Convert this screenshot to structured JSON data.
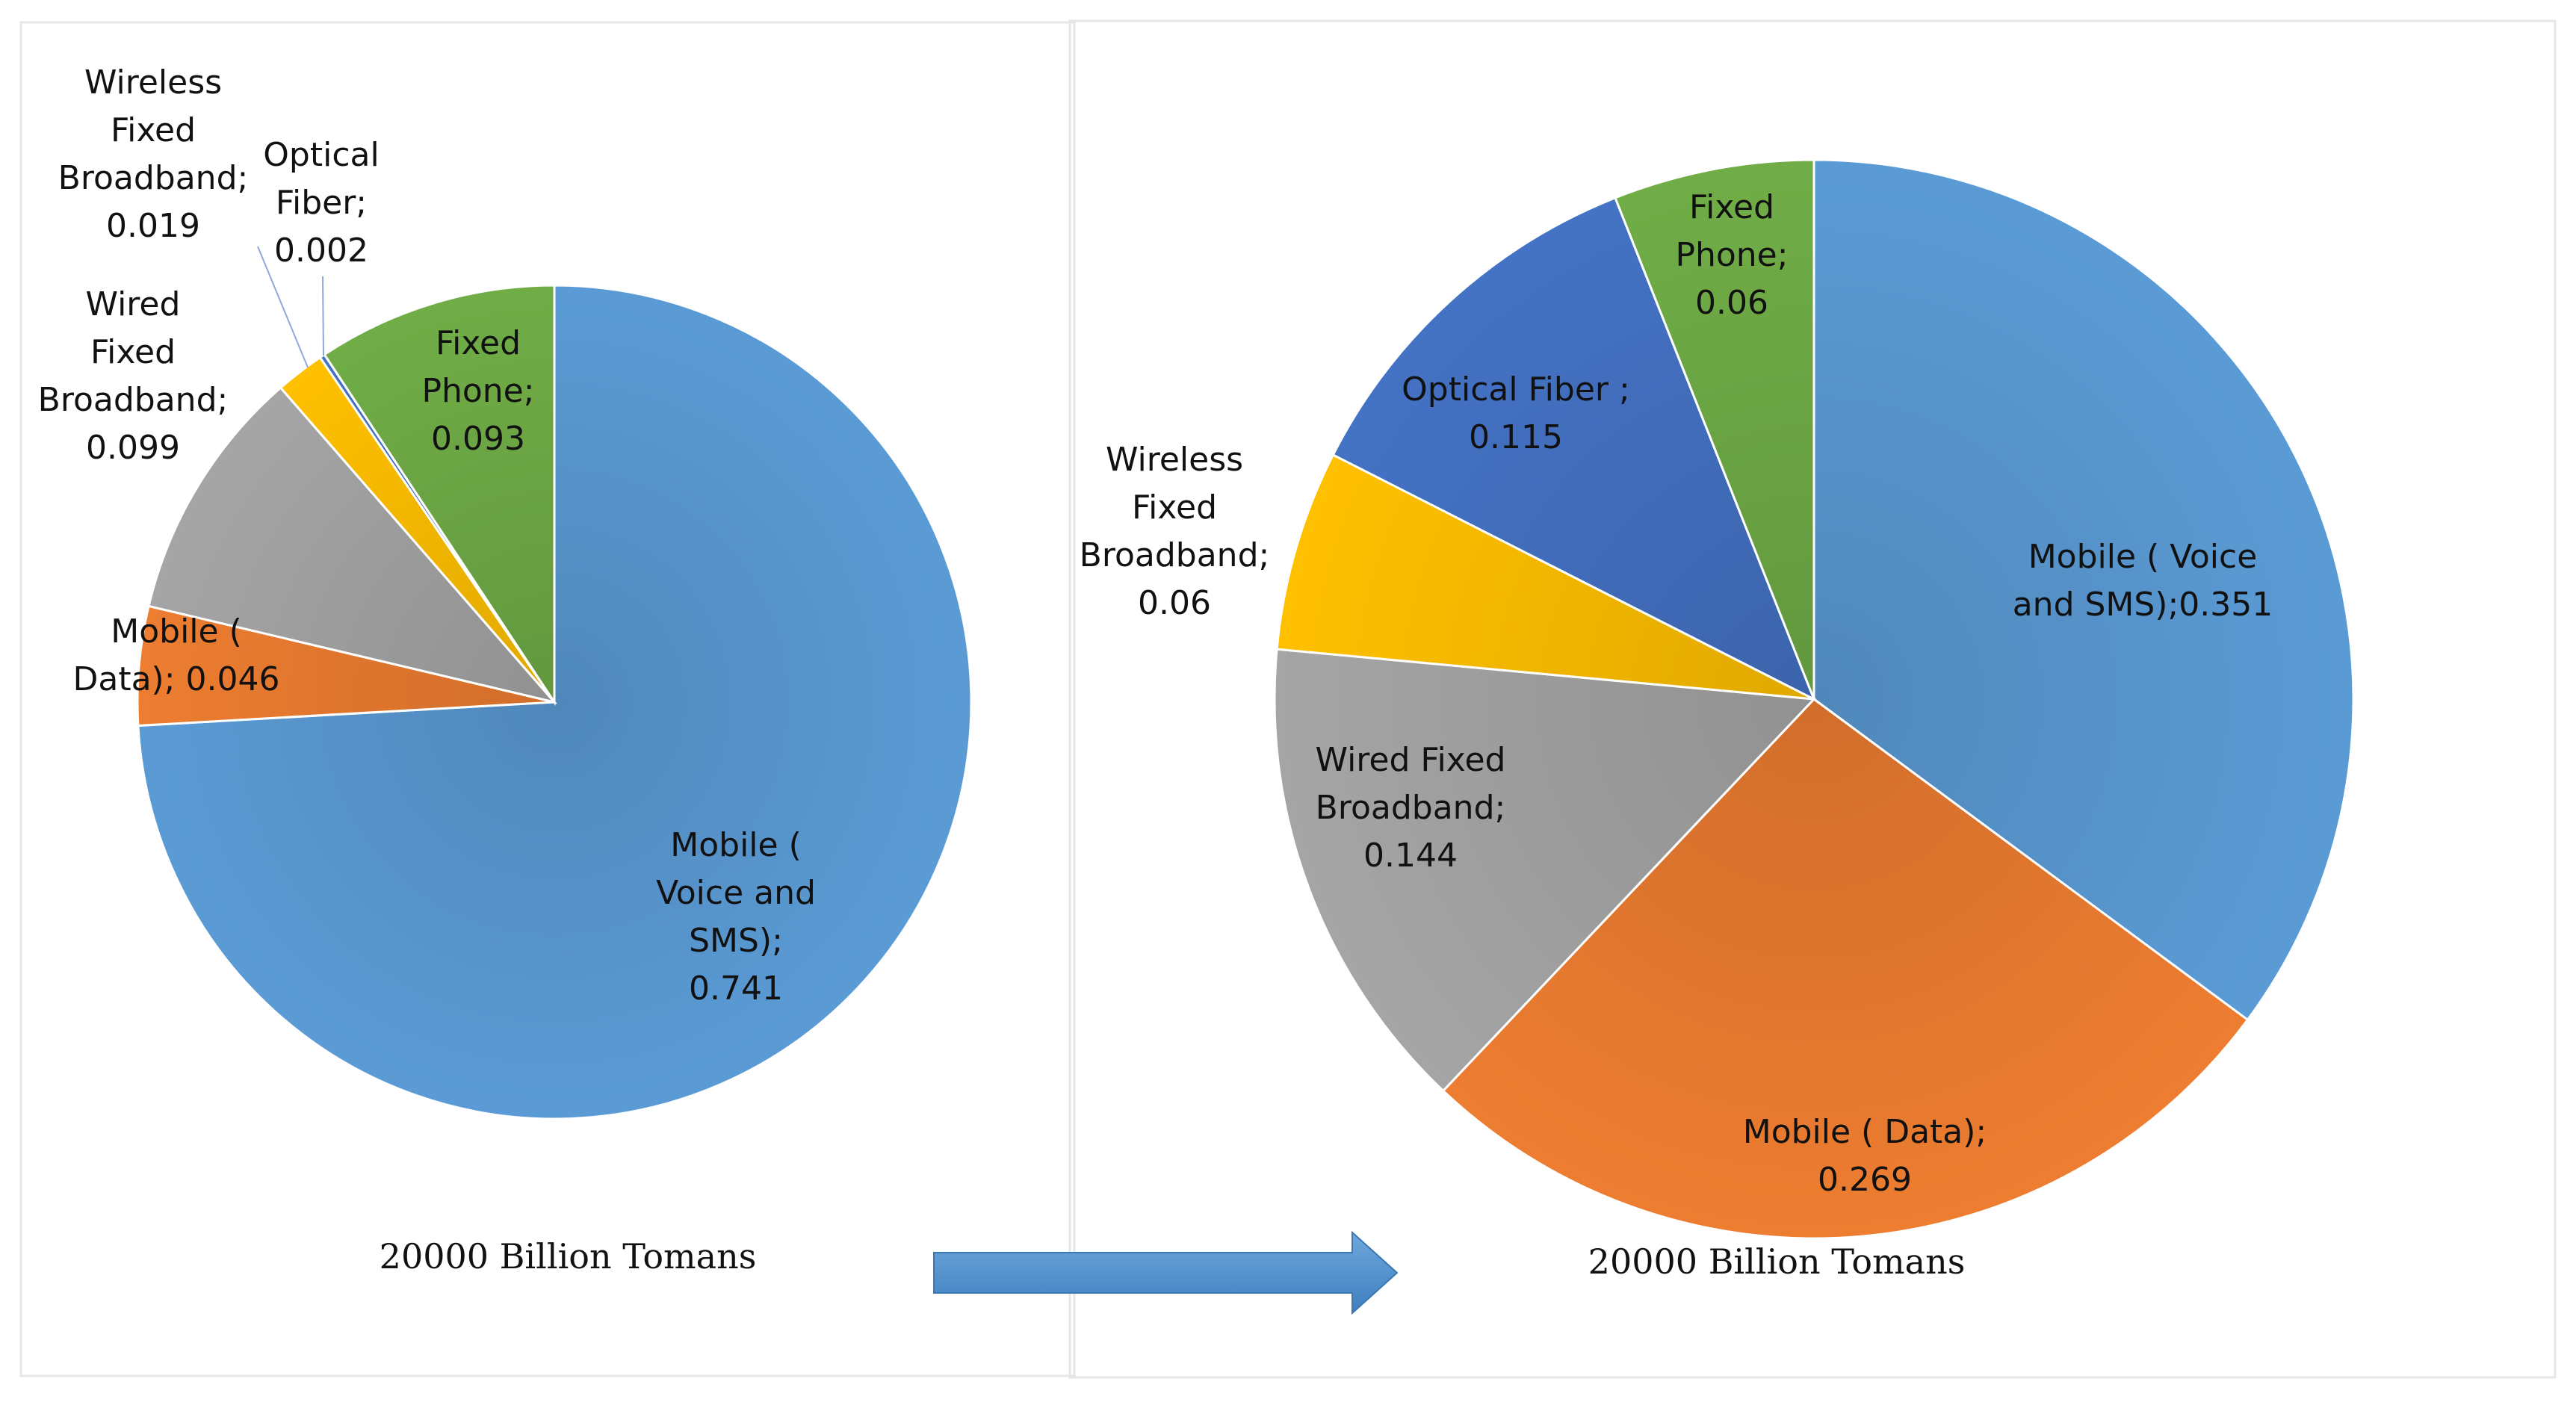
{
  "chart_data": [
    {
      "type": "pie",
      "caption": "20000 Billion Tomans",
      "slices": [
        {
          "label_lines": [
            "Mobile (",
            "Voice and",
            "SMS);",
            "0.741"
          ],
          "value": 0.741,
          "color": "#5b9bd5"
        },
        {
          "label_lines": [
            "Mobile (",
            "Data); 0.046"
          ],
          "value": 0.046,
          "color": "#ed7d31"
        },
        {
          "label_lines": [
            "Wired",
            "Fixed",
            "Broadband;",
            "0.099"
          ],
          "value": 0.099,
          "color": "#a5a5a5"
        },
        {
          "label_lines": [
            "Wireless",
            "Fixed",
            "Broadband;",
            "0.019"
          ],
          "value": 0.019,
          "color": "#ffc000"
        },
        {
          "label_lines": [
            "Optical",
            "Fiber;",
            "0.002"
          ],
          "value": 0.002,
          "color": "#4472c4"
        },
        {
          "label_lines": [
            "Fixed",
            "Phone;",
            "0.093"
          ],
          "value": 0.093,
          "color": "#70ad47"
        }
      ]
    },
    {
      "type": "pie",
      "caption": "20000 Billion Tomans",
      "slices": [
        {
          "label_lines": [
            "Mobile ( Voice",
            "and SMS);0.351"
          ],
          "value": 0.351,
          "color": "#5b9bd5"
        },
        {
          "label_lines": [
            "Mobile ( Data);",
            "0.269"
          ],
          "value": 0.269,
          "color": "#ed7d31"
        },
        {
          "label_lines": [
            "Wired Fixed",
            "Broadband;",
            "0.144"
          ],
          "value": 0.144,
          "color": "#a5a5a5"
        },
        {
          "label_lines": [
            "Wireless",
            "Fixed",
            "Broadband;",
            "0.06"
          ],
          "value": 0.06,
          "color": "#ffc000"
        },
        {
          "label_lines": [
            "Optical Fiber ;",
            "0.115"
          ],
          "value": 0.115,
          "color": "#4472c4"
        },
        {
          "label_lines": [
            "Fixed",
            "Phone;",
            "0.06"
          ],
          "value": 0.06,
          "color": "#70ad47"
        }
      ]
    }
  ],
  "arrow_color": "#5b9bd5"
}
